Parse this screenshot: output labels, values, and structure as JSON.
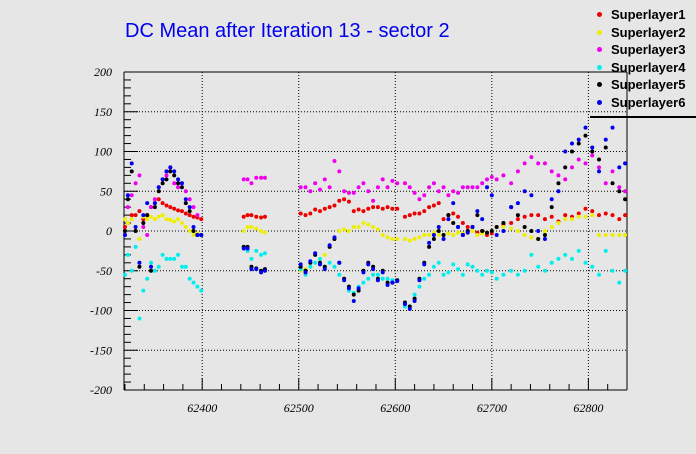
{
  "chart_data": {
    "type": "scatter",
    "title": "DC Mean after Iteration 13 - sector 2",
    "xlabel": "",
    "ylabel": "",
    "xlim": [
      62319,
      62840
    ],
    "ylim": [
      -200,
      200
    ],
    "xticks": [
      62400,
      62500,
      62600,
      62700,
      62800
    ],
    "yticks": [
      -200,
      -150,
      -100,
      -50,
      0,
      50,
      100,
      150,
      200
    ],
    "grid": true,
    "legend_position": "top-right",
    "x": [
      62320,
      62323,
      62327,
      62331,
      62335,
      62339,
      62343,
      62347,
      62351,
      62355,
      62359,
      62363,
      62367,
      62371,
      62375,
      62379,
      62383,
      62387,
      62391,
      62395,
      62399,
      62443,
      62447,
      62451,
      62456,
      62461,
      62465,
      62502,
      62507,
      62512,
      62517,
      62522,
      62527,
      62532,
      62537,
      62542,
      62547,
      62552,
      62557,
      62562,
      62567,
      62572,
      62577,
      62582,
      62587,
      62592,
      62597,
      62602,
      62610,
      62615,
      62620,
      62625,
      62630,
      62635,
      62640,
      62645,
      62650,
      62655,
      62660,
      62665,
      62670,
      62675,
      62680,
      62685,
      62690,
      62695,
      62700,
      62705,
      62712,
      62720,
      62727,
      62734,
      62741,
      62748,
      62755,
      62762,
      62769,
      62776,
      62783,
      62790,
      62797,
      62804,
      62811,
      62818,
      62825,
      62832,
      62838
    ],
    "series": [
      {
        "name": "Superlayer1",
        "color": "#ee0000",
        "values": [
          5,
          10,
          20,
          20,
          25,
          15,
          20,
          30,
          35,
          40,
          35,
          32,
          30,
          28,
          26,
          25,
          22,
          20,
          18,
          17,
          15,
          18,
          20,
          20,
          18,
          17,
          18,
          22,
          20,
          22,
          27,
          25,
          28,
          30,
          32,
          38,
          40,
          37,
          25,
          27,
          25,
          28,
          30,
          30,
          28,
          30,
          28,
          28,
          18,
          20,
          22,
          22,
          25,
          30,
          32,
          35,
          15,
          20,
          22,
          18,
          10,
          5,
          5,
          -2,
          0,
          -5,
          -3,
          5,
          8,
          10,
          15,
          18,
          20,
          20,
          15,
          18,
          12,
          20,
          18,
          22,
          28,
          25,
          20,
          22,
          20,
          15,
          20
        ]
      },
      {
        "name": "Superlayer2",
        "color": "#eeee00",
        "values": [
          15,
          10,
          15,
          5,
          -10,
          18,
          15,
          18,
          15,
          18,
          20,
          15,
          14,
          12,
          15,
          10,
          5,
          0,
          -5,
          -3,
          -5,
          0,
          5,
          5,
          3,
          0,
          -2,
          -50,
          -48,
          -45,
          -40,
          -35,
          -30,
          -20,
          -10,
          0,
          2,
          0,
          5,
          5,
          10,
          8,
          5,
          2,
          -5,
          -8,
          -10,
          -10,
          -10,
          -12,
          -10,
          -8,
          -5,
          -5,
          -2,
          -5,
          -5,
          -3,
          -5,
          -2,
          -3,
          -2,
          0,
          -5,
          -3,
          -2,
          0,
          5,
          5,
          3,
          0,
          -5,
          -8,
          -10,
          0,
          5,
          10,
          15,
          15,
          18,
          18,
          20,
          -5,
          -5,
          -5,
          -5,
          -5
        ]
      },
      {
        "name": "Superlayer3",
        "color": "#ee00ee",
        "values": [
          -5,
          30,
          45,
          60,
          70,
          5,
          -5,
          30,
          40,
          55,
          65,
          70,
          80,
          60,
          55,
          60,
          50,
          40,
          30,
          20,
          -5,
          65,
          65,
          60,
          67,
          67,
          67,
          55,
          55,
          50,
          60,
          52,
          65,
          55,
          88,
          75,
          50,
          48,
          48,
          55,
          60,
          50,
          38,
          55,
          65,
          55,
          63,
          60,
          60,
          55,
          48,
          40,
          45,
          55,
          60,
          50,
          55,
          45,
          50,
          48,
          55,
          55,
          55,
          55,
          60,
          65,
          68,
          65,
          70,
          60,
          75,
          85,
          93,
          85,
          85,
          75,
          70,
          65,
          80,
          90,
          85,
          95,
          80,
          60,
          75,
          55,
          50
        ]
      },
      {
        "name": "Superlayer4",
        "color": "#00eeee",
        "values": [
          -55,
          -30,
          -50,
          -20,
          -110,
          -75,
          -60,
          -40,
          -50,
          -45,
          -30,
          -35,
          -35,
          -35,
          -30,
          -45,
          -45,
          -60,
          -65,
          -70,
          -75,
          -20,
          -25,
          -35,
          -25,
          -30,
          -28,
          -48,
          -55,
          -45,
          -40,
          -35,
          -45,
          -40,
          -45,
          -55,
          -60,
          -75,
          -78,
          -70,
          -65,
          -60,
          -55,
          -55,
          -60,
          -60,
          -62,
          -62,
          -95,
          -95,
          -80,
          -70,
          -60,
          -55,
          -45,
          -40,
          -55,
          -52,
          -42,
          -48,
          -55,
          -42,
          -45,
          -50,
          -55,
          -50,
          -52,
          -60,
          -55,
          -50,
          -55,
          -50,
          -30,
          -45,
          -50,
          -40,
          -35,
          -30,
          -35,
          -25,
          -40,
          -45,
          -55,
          -25,
          -50,
          -65,
          -50
        ]
      },
      {
        "name": "Superlayer5",
        "color": "#000000",
        "values": [
          0,
          40,
          75,
          0,
          -45,
          10,
          20,
          -50,
          30,
          50,
          60,
          65,
          75,
          70,
          60,
          55,
          35,
          25,
          0,
          -5,
          -5,
          -20,
          -20,
          -45,
          -47,
          -50,
          -48,
          -45,
          -50,
          -40,
          -30,
          -40,
          -45,
          -20,
          -10,
          -40,
          -60,
          -70,
          -80,
          -75,
          -50,
          -40,
          -45,
          -60,
          -50,
          -65,
          -65,
          -62,
          -90,
          -95,
          -85,
          -60,
          -40,
          -20,
          -10,
          0,
          -5,
          20,
          10,
          5,
          -5,
          0,
          5,
          20,
          0,
          -2,
          0,
          5,
          10,
          30,
          20,
          5,
          0,
          -10,
          -5,
          30,
          60,
          80,
          100,
          110,
          120,
          100,
          90,
          105,
          60,
          50,
          40
        ]
      },
      {
        "name": "Superlayer6",
        "color": "#0000ee",
        "values": [
          -5,
          45,
          85,
          5,
          -40,
          20,
          35,
          -45,
          35,
          55,
          65,
          75,
          80,
          75,
          65,
          60,
          40,
          30,
          5,
          -5,
          -5,
          -22,
          -22,
          -48,
          -48,
          -52,
          -50,
          -42,
          -52,
          -38,
          -28,
          -42,
          -48,
          -18,
          -8,
          -40,
          -62,
          -72,
          -88,
          -72,
          -52,
          -42,
          -48,
          -62,
          -52,
          -68,
          -65,
          -63,
          -92,
          -98,
          -88,
          -62,
          -42,
          -15,
          -5,
          5,
          -10,
          15,
          35,
          5,
          -5,
          -2,
          5,
          25,
          15,
          55,
          45,
          -5,
          0,
          30,
          35,
          50,
          45,
          0,
          -10,
          40,
          50,
          100,
          110,
          115,
          130,
          105,
          75,
          115,
          130,
          80,
          85
        ]
      }
    ]
  }
}
